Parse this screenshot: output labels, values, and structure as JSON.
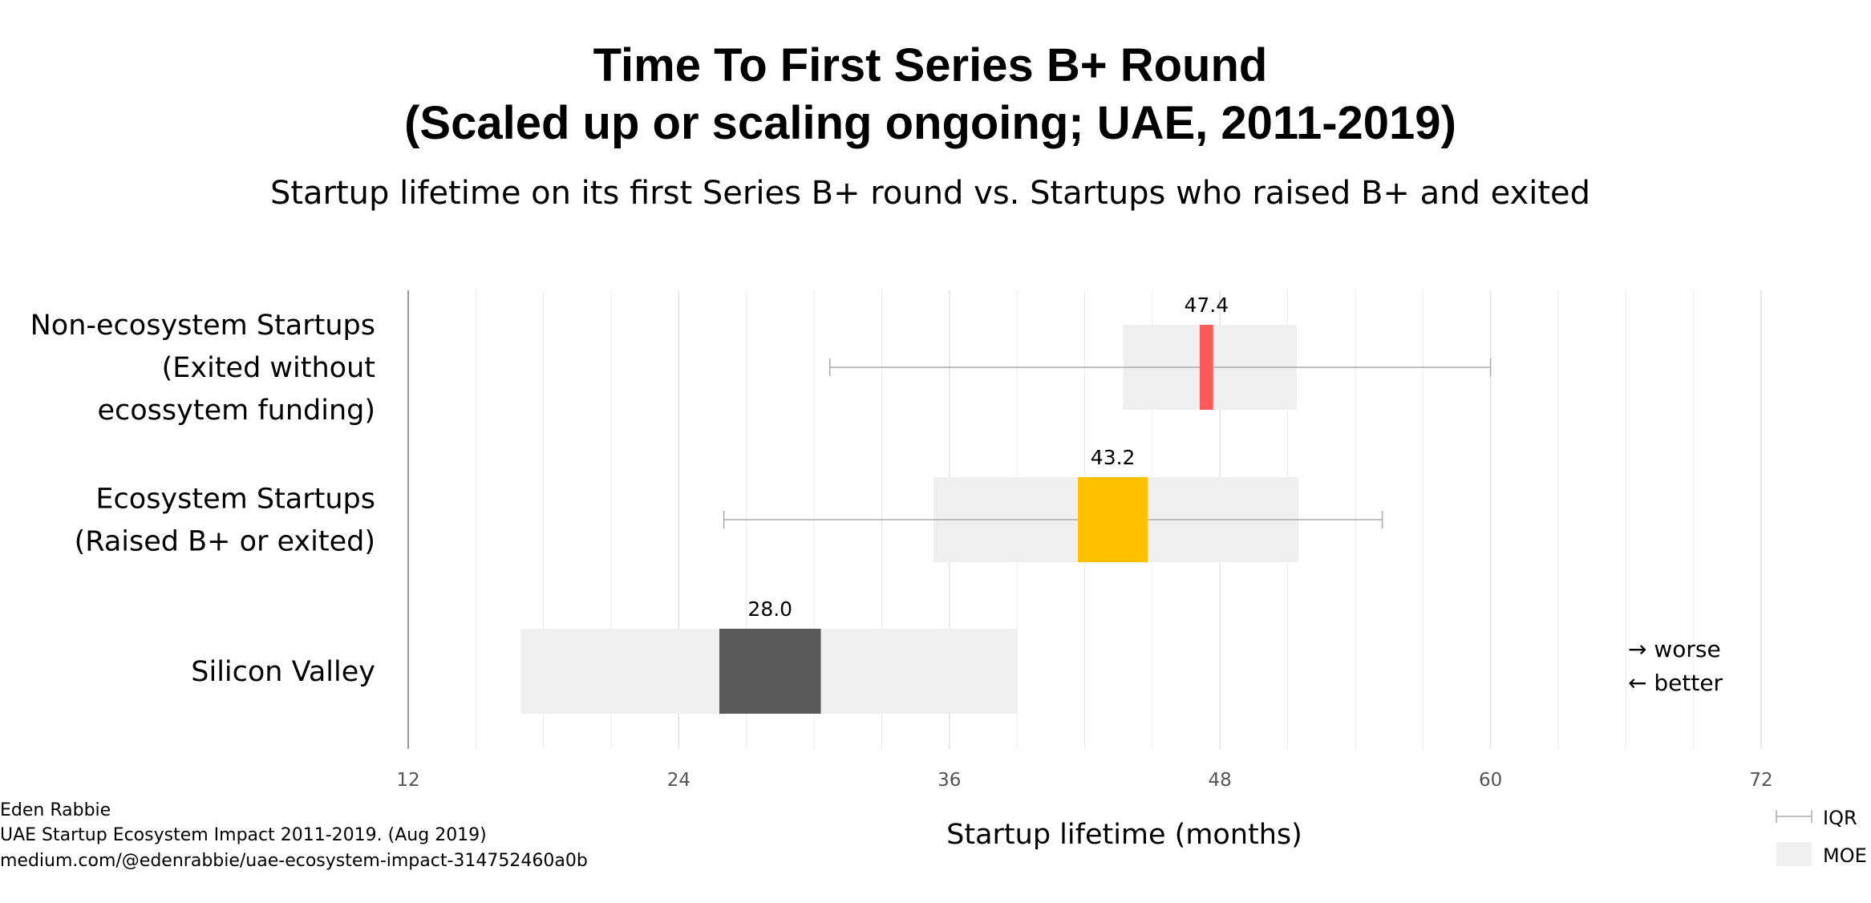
{
  "chart_data": {
    "type": "range_bar",
    "title_lines": [
      "Time To First Series B+ Round",
      "(Scaled up or scaling ongoing; UAE, 2011-2019)"
    ],
    "subtitle": "Startup lifetime on its first Series B+ round vs. Startups who raised B+ and exited",
    "xlabel": "Startup lifetime (months)",
    "xlim": [
      12,
      72
    ],
    "xticks": [
      12,
      24,
      36,
      48,
      60,
      72
    ],
    "minor_grid_step": 3,
    "categories": [
      {
        "label_lines": [
          "Non-ecosystem Startups",
          "(Exited without",
          "ecossytem funding)"
        ],
        "median": 47.4,
        "median_label": "47.4",
        "median_box": [
          47.1,
          47.7
        ],
        "moe": [
          43.7,
          51.4
        ],
        "iqr": [
          30.7,
          60.0
        ],
        "color": "#ff5a5a"
      },
      {
        "label_lines": [
          "Ecosystem Startups",
          "(Raised B+ or exited)"
        ],
        "median": 43.2,
        "median_label": "43.2",
        "median_box": [
          41.7,
          44.8
        ],
        "moe": [
          35.3,
          51.5
        ],
        "iqr": [
          26.0,
          55.2
        ],
        "color": "#ffc000"
      },
      {
        "label_lines": [
          "Silicon Valley"
        ],
        "median": 28.0,
        "median_label": "28.0",
        "median_box": [
          25.8,
          30.3
        ],
        "moe": [
          17.0,
          39.0
        ],
        "iqr": null,
        "color": "#595959"
      }
    ],
    "note_lines": [
      "→ worse",
      "← better"
    ],
    "legend": [
      {
        "symbol": "iqr",
        "label": "IQR"
      },
      {
        "symbol": "moe",
        "label": "MOE"
      }
    ],
    "colors": {
      "moe": "#f0efef",
      "iqr": "#aaaaaa",
      "grid": "#ebebeb",
      "axis": "#999999"
    }
  },
  "credit_lines": [
    "Eden Rabbie",
    "UAE Startup Ecosystem Impact 2011-2019. (Aug 2019)",
    "medium.com/@edenrabbie/uae-ecosystem-impact-314752460a0b"
  ]
}
